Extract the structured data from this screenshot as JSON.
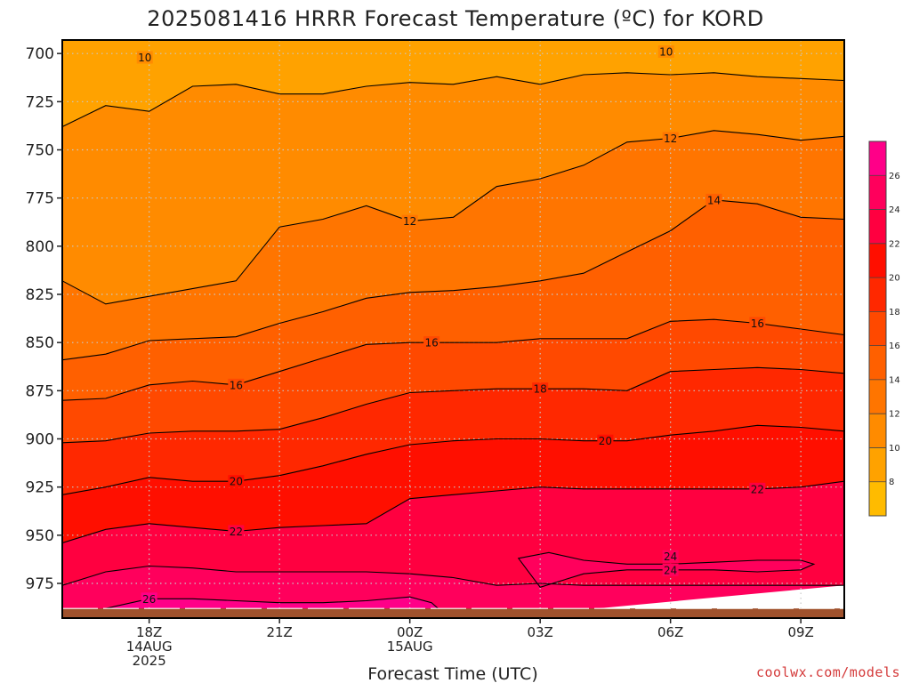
{
  "chart_data": {
    "type": "heatmap",
    "title": "2025081416 HRRR Forecast Temperature (ºC) for KORD",
    "xlabel": "Forecast Time (UTC)",
    "ylabel": "",
    "y_scale": "pressure (hPa), increasing downward",
    "ylim": [
      693,
      993
    ],
    "y_ticks": [
      700,
      725,
      750,
      775,
      800,
      825,
      850,
      875,
      900,
      925,
      950,
      975
    ],
    "x_ticks": [
      {
        "x": 0,
        "lines": [
          "18Z",
          "14AUG",
          "2025"
        ]
      },
      {
        "x": 3,
        "lines": [
          "21Z"
        ]
      },
      {
        "x": 6,
        "lines": [
          "00Z",
          "15AUG"
        ]
      },
      {
        "x": 9,
        "lines": [
          "03Z"
        ]
      },
      {
        "x": 12,
        "lines": [
          "06Z"
        ]
      },
      {
        "x": 15,
        "lines": [
          "09Z"
        ]
      }
    ],
    "x_range_hours": [
      -2,
      16
    ],
    "grid": true,
    "surface_pressure_hPa": 988,
    "colorbar": {
      "levels": [
        6,
        8,
        10,
        12,
        14,
        16,
        18,
        20,
        22,
        24,
        26,
        28
      ],
      "labels": [
        "8",
        "10",
        "12",
        "14",
        "16",
        "18",
        "20",
        "22",
        "24",
        "26"
      ],
      "colors": [
        "#ffbb00",
        "#ffa200",
        "#ff8b00",
        "#ff7500",
        "#ff6000",
        "#ff4900",
        "#ff2800",
        "#ff0f00",
        "#ff0040",
        "#ff005c",
        "#ff0088"
      ]
    },
    "isotherms": [
      {
        "value": 10,
        "label_at": [
          [
            -0.1,
            702
          ],
          [
            11.9,
            699
          ]
        ],
        "points": [
          [
            -2,
            738
          ],
          [
            -1,
            727
          ],
          [
            0,
            730
          ],
          [
            1,
            717
          ],
          [
            2,
            716
          ],
          [
            3,
            721
          ],
          [
            4,
            721
          ],
          [
            5,
            717
          ],
          [
            6,
            715
          ],
          [
            7,
            716
          ],
          [
            8,
            712
          ],
          [
            9,
            716
          ],
          [
            10,
            711
          ],
          [
            11,
            710
          ],
          [
            12,
            711
          ],
          [
            13,
            710
          ],
          [
            14,
            712
          ],
          [
            16,
            714
          ]
        ]
      },
      {
        "value": 12,
        "label_at": [
          [
            6,
            787
          ],
          [
            12,
            744
          ]
        ],
        "points": [
          [
            -2,
            818
          ],
          [
            -1,
            830
          ],
          [
            0,
            826
          ],
          [
            2,
            818
          ],
          [
            3,
            790
          ],
          [
            4,
            786
          ],
          [
            5,
            779
          ],
          [
            6,
            787
          ],
          [
            7,
            785
          ],
          [
            8,
            769
          ],
          [
            9,
            765
          ],
          [
            10,
            758
          ],
          [
            11,
            746
          ],
          [
            12,
            744
          ],
          [
            13,
            740
          ],
          [
            14,
            742
          ],
          [
            15,
            745
          ],
          [
            16,
            743
          ]
        ]
      },
      {
        "value": 14,
        "label_at": [
          [
            13,
            776
          ]
        ],
        "points": [
          [
            -2,
            859
          ],
          [
            -1,
            856
          ],
          [
            0,
            849
          ],
          [
            1,
            848
          ],
          [
            2,
            847
          ],
          [
            3,
            840
          ],
          [
            4,
            834
          ],
          [
            5,
            827
          ],
          [
            6,
            824
          ],
          [
            7,
            823
          ],
          [
            8,
            821
          ],
          [
            9,
            818
          ],
          [
            10,
            814
          ],
          [
            11,
            803
          ],
          [
            12,
            792
          ],
          [
            13,
            776
          ],
          [
            14,
            778
          ],
          [
            15,
            785
          ],
          [
            16,
            786
          ]
        ]
      },
      {
        "value": 16,
        "label_at": [
          [
            2,
            872
          ],
          [
            6.5,
            850
          ],
          [
            14,
            840
          ]
        ],
        "points": [
          [
            -2,
            880
          ],
          [
            -1,
            879
          ],
          [
            0,
            872
          ],
          [
            1,
            870
          ],
          [
            2,
            872
          ],
          [
            3,
            865
          ],
          [
            4,
            858
          ],
          [
            5,
            851
          ],
          [
            6,
            850
          ],
          [
            7,
            850
          ],
          [
            8,
            850
          ],
          [
            9,
            848
          ],
          [
            10,
            848
          ],
          [
            11,
            848
          ],
          [
            12,
            839
          ],
          [
            13,
            838
          ],
          [
            14,
            840
          ],
          [
            15,
            843
          ],
          [
            16,
            846
          ]
        ]
      },
      {
        "value": 18,
        "label_at": [
          [
            9,
            874
          ]
        ],
        "points": [
          [
            -2,
            902
          ],
          [
            -1,
            901
          ],
          [
            0,
            897
          ],
          [
            1,
            896
          ],
          [
            2,
            896
          ],
          [
            3,
            895
          ],
          [
            4,
            889
          ],
          [
            5,
            882
          ],
          [
            6,
            876
          ],
          [
            7,
            875
          ],
          [
            8,
            874
          ],
          [
            9,
            874
          ],
          [
            10,
            874
          ],
          [
            11,
            875
          ],
          [
            12,
            865
          ],
          [
            13,
            864
          ],
          [
            14,
            863
          ],
          [
            15,
            864
          ],
          [
            16,
            866
          ]
        ]
      },
      {
        "value": 20,
        "label_at": [
          [
            2,
            922
          ],
          [
            10.5,
            901
          ]
        ],
        "points": [
          [
            -2,
            929
          ],
          [
            -1,
            925
          ],
          [
            0,
            920
          ],
          [
            1,
            922
          ],
          [
            2,
            922
          ],
          [
            3,
            919
          ],
          [
            4,
            914
          ],
          [
            5,
            908
          ],
          [
            6,
            903
          ],
          [
            7,
            901
          ],
          [
            8,
            900
          ],
          [
            9,
            900
          ],
          [
            10,
            901
          ],
          [
            11,
            901
          ],
          [
            12,
            898
          ],
          [
            13,
            896
          ],
          [
            14,
            893
          ],
          [
            15,
            894
          ],
          [
            16,
            896
          ]
        ]
      },
      {
        "value": 22,
        "label_at": [
          [
            2,
            948
          ],
          [
            14,
            926
          ]
        ],
        "points": [
          [
            -2,
            954
          ],
          [
            -1,
            947
          ],
          [
            0,
            944
          ],
          [
            1,
            946
          ],
          [
            2,
            948
          ],
          [
            3,
            946
          ],
          [
            4,
            945
          ],
          [
            5,
            944
          ],
          [
            6,
            931
          ],
          [
            7,
            929
          ],
          [
            8,
            927
          ],
          [
            9,
            925
          ],
          [
            10,
            926
          ],
          [
            11,
            926
          ],
          [
            12,
            926
          ],
          [
            13,
            926
          ],
          [
            14,
            926
          ],
          [
            15,
            925
          ],
          [
            16,
            922
          ]
        ]
      },
      {
        "value": 24,
        "label_at": [
          [
            12,
            961
          ]
        ],
        "points": [
          [
            -2,
            976
          ],
          [
            -1,
            969
          ],
          [
            0,
            966
          ],
          [
            1,
            967
          ],
          [
            2,
            969
          ],
          [
            3,
            969
          ],
          [
            4,
            969
          ],
          [
            5,
            969
          ],
          [
            6,
            970
          ],
          [
            7,
            972
          ],
          [
            8,
            976
          ],
          [
            9,
            975
          ],
          [
            10,
            976
          ],
          [
            11,
            976
          ],
          [
            12,
            976
          ],
          [
            13,
            976
          ],
          [
            14,
            976
          ],
          [
            16,
            976
          ]
        ]
      },
      {
        "value": 26,
        "label_at": [
          [
            0,
            983
          ]
        ],
        "points": [
          [
            -2,
            995
          ],
          [
            -1,
            988
          ],
          [
            0,
            983
          ],
          [
            1,
            983
          ],
          [
            2,
            984
          ],
          [
            3,
            985
          ],
          [
            4,
            985
          ],
          [
            5,
            984
          ],
          [
            6,
            982
          ],
          [
            6.5,
            985
          ],
          [
            7,
            995
          ]
        ]
      }
    ],
    "warm_pocket": {
      "value": 24,
      "label_at": [
        [
          12,
          968
        ]
      ],
      "points": [
        [
          8.5,
          962
        ],
        [
          9.2,
          959
        ],
        [
          10,
          963
        ],
        [
          11,
          965
        ],
        [
          12,
          965
        ],
        [
          13,
          964
        ],
        [
          14,
          963
        ],
        [
          15,
          963
        ],
        [
          15.3,
          965
        ],
        [
          15,
          968
        ],
        [
          14,
          969
        ],
        [
          13,
          968
        ],
        [
          12,
          968
        ],
        [
          11,
          968
        ],
        [
          10,
          970
        ],
        [
          9,
          977
        ],
        [
          8.7,
          968
        ]
      ]
    }
  },
  "credit": "coolwx.com/models"
}
